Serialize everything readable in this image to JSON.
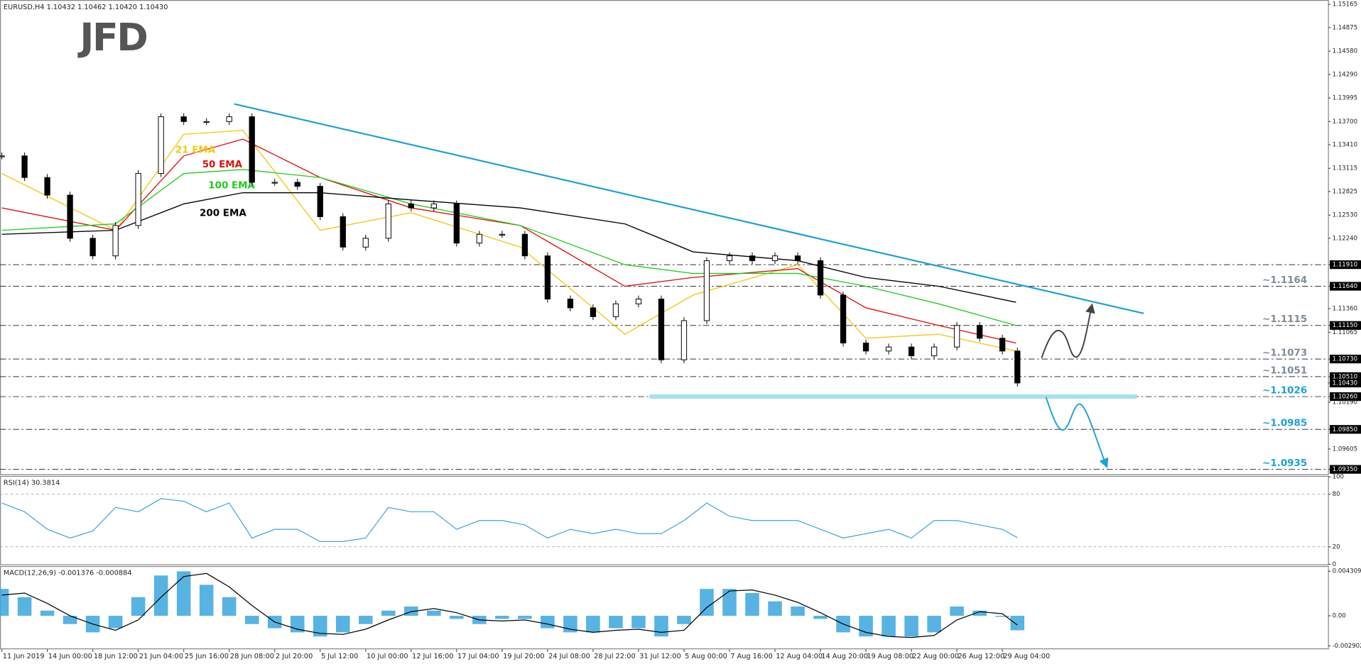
{
  "logo": "JFD",
  "chart_data": [
    {
      "type": "candlestick",
      "title": "EURUSD,H4  1.10432 1.10462 1.10420 1.10430",
      "x": [
        0,
        0.5,
        1,
        1.5,
        2,
        2.5,
        3,
        3.5,
        4,
        4.5,
        5,
        5.5,
        6,
        6.5,
        7,
        7.5,
        8,
        8.5,
        9,
        9.5,
        10,
        10.5,
        11,
        11.5,
        12,
        12.5,
        13,
        13.5,
        14,
        14.5,
        15,
        15.5,
        16,
        16.5,
        17,
        17.5,
        18,
        18.5,
        19,
        19.5,
        20,
        20.5,
        21,
        21.5,
        22,
        22.33
      ],
      "values": [
        1.1327,
        1.13,
        1.1278,
        1.1224,
        1.1202,
        1.124,
        1.1305,
        1.1376,
        1.137,
        1.137,
        1.1376,
        1.1294,
        1.1294,
        1.1289,
        1.1251,
        1.1213,
        1.1224,
        1.1267,
        1.1262,
        1.1267,
        1.1218,
        1.1229,
        1.1229,
        1.1202,
        1.1148,
        1.1137,
        1.1126,
        1.1142,
        1.1148,
        1.1072,
        1.1121,
        1.1196,
        1.1202,
        1.1196,
        1.1202,
        1.1196,
        1.1153,
        1.1093,
        1.1083,
        1.1088,
        1.1077,
        1.1088,
        1.1115,
        1.1099,
        1.1083,
        1.1043
      ],
      "color_up": "#ffffff",
      "color_down": "#000000",
      "series": [
        {
          "name": "21 EMA",
          "color": "#f2c811",
          "x": [
            0,
            2.5,
            4,
            5.3,
            7,
            9,
            11.4,
            13.7,
            15.2,
            17.5,
            19,
            20.6,
            22.3
          ],
          "values": [
            1.1305,
            1.1234,
            1.1354,
            1.1359,
            1.1234,
            1.1256,
            1.1213,
            1.1104,
            1.1153,
            1.1191,
            1.1099,
            1.1104,
            1.1083
          ]
        },
        {
          "name": "50 EMA",
          "color": "#e01010",
          "x": [
            0,
            2.5,
            4,
            5.3,
            7,
            9,
            11.4,
            13.7,
            15.2,
            17.5,
            19,
            20.6,
            22.3
          ],
          "values": [
            1.1262,
            1.1234,
            1.1327,
            1.1348,
            1.13,
            1.1262,
            1.124,
            1.1164,
            1.1175,
            1.1186,
            1.1137,
            1.1115,
            1.1093
          ]
        },
        {
          "name": "100 EMA",
          "color": "#1fcc1f",
          "x": [
            0,
            2.5,
            4,
            5.3,
            7,
            9,
            11.4,
            13.7,
            15.2,
            17.5,
            19,
            20.6,
            22.3
          ],
          "values": [
            1.1234,
            1.1242,
            1.1305,
            1.131,
            1.13,
            1.1267,
            1.124,
            1.1191,
            1.118,
            1.118,
            1.1164,
            1.1142,
            1.1115
          ]
        },
        {
          "name": "200 EMA",
          "color": "#000000",
          "x": [
            0,
            2.5,
            4,
            5.3,
            7,
            9,
            11.4,
            13.7,
            15.2,
            17.5,
            19,
            20.6,
            22.3
          ],
          "values": [
            1.1229,
            1.1234,
            1.1267,
            1.1281,
            1.1281,
            1.1272,
            1.1262,
            1.1242,
            1.1207,
            1.1196,
            1.1175,
            1.1164,
            1.1144
          ]
        }
      ],
      "trendline": {
        "x": [
          5.11,
          25.11
        ],
        "values": [
          1.1392,
          1.113
        ],
        "color": "#1e9fd8"
      },
      "support_zone": {
        "x": [
          14.24,
          24.96
        ],
        "value": 1.1026,
        "color": "#a6e0f2"
      },
      "levels": [
        {
          "value": 1.1191
        },
        {
          "value": 1.1164,
          "label": "~1.1164",
          "color": "#7f8c97"
        },
        {
          "value": 1.1115,
          "label": "~1.1115",
          "color": "#7f8c97"
        },
        {
          "value": 1.1073,
          "label": "~1.1073",
          "color": "#7f8c97"
        },
        {
          "value": 1.1051,
          "label": "~1.1051",
          "color": "#7f8c97"
        },
        {
          "value": 1.1026,
          "label": "~1.1026",
          "color": "#1ba1d9"
        },
        {
          "value": 1.0985,
          "label": "~1.0985",
          "color": "#1ba1d9"
        },
        {
          "value": 1.0935,
          "label": "~1.0935",
          "color": "#1ba1d9"
        }
      ],
      "xlim": [
        -0.04,
        29.16
      ],
      "ylim": [
        1.0929,
        1.1522
      ],
      "yticks": [
        1.15165,
        1.14875,
        {
          "value": 1.1458,
          "label": "1.14580"
        },
        {
          "value": 1.1429,
          "label": "1.14290"
        },
        1.13995,
        {
          "value": 1.137,
          "label": "1.13700"
        },
        {
          "value": 1.1341,
          "label": "1.13410"
        },
        1.13115,
        1.12825,
        {
          "value": 1.1253,
          "label": "1.12530"
        },
        {
          "value": 1.1224,
          "label": "1.12240"
        },
        {
          "value": 1.1191,
          "label": "1.11910",
          "highlight": true
        },
        {
          "value": 1.1164,
          "label": "1.11640",
          "highlight": true
        },
        {
          "value": 1.1136,
          "label": "1.11360"
        },
        {
          "value": 1.1115,
          "label": "1.11150",
          "highlight": true
        },
        1.11065,
        {
          "value": 1.1073,
          "label": "1.10730",
          "highlight": true
        },
        {
          "value": 1.1051,
          "label": "1.10510",
          "highlight": true
        },
        {
          "value": 1.1043,
          "label": "1.10430",
          "highlight": true
        },
        {
          "value": 1.1026,
          "label": "1.10260",
          "highlight": true
        },
        {
          "value": 1.1019,
          "label": "1.10190"
        },
        {
          "value": 1.0985,
          "label": "1.09850",
          "highlight": true
        },
        1.09605,
        {
          "value": 1.0935,
          "label": "1.09350",
          "highlight": true
        }
      ]
    },
    {
      "type": "line",
      "title": "RSI(14) 30.3814",
      "x": [
        0,
        0.5,
        1,
        1.5,
        2,
        2.5,
        3,
        3.5,
        4,
        4.5,
        5,
        5.5,
        6,
        6.5,
        7,
        7.5,
        8,
        8.5,
        9,
        9.5,
        10,
        10.5,
        11,
        11.5,
        12,
        12.5,
        13,
        13.5,
        14,
        14.5,
        15,
        15.5,
        16,
        16.5,
        17,
        17.5,
        18,
        18.5,
        19,
        19.5,
        20,
        20.5,
        21,
        21.5,
        22,
        22.33
      ],
      "values": [
        70,
        60,
        40,
        30,
        38,
        65,
        60,
        75,
        72,
        60,
        70,
        30,
        40,
        40,
        26,
        26,
        30,
        65,
        60,
        60,
        40,
        50,
        50,
        45,
        30,
        40,
        35,
        40,
        35,
        35,
        50,
        70,
        55,
        50,
        50,
        50,
        40,
        30,
        35,
        40,
        30,
        50,
        50,
        45,
        40,
        30.4
      ],
      "color": "#3aa6dd",
      "xlim": [
        -0.04,
        29.16
      ],
      "ylim": [
        0,
        100
      ],
      "yticks": [
        100,
        80,
        20,
        0
      ],
      "levels": [
        80,
        20
      ]
    },
    {
      "type": "macd",
      "title": "MACD(12,26,9) -0.001376 -0.000884",
      "x": [
        0,
        0.5,
        1,
        1.5,
        2,
        2.5,
        3,
        3.5,
        4,
        4.5,
        5,
        5.5,
        6,
        6.5,
        7,
        7.5,
        8,
        8.5,
        9,
        9.5,
        10,
        10.5,
        11,
        11.5,
        12,
        12.5,
        13,
        13.5,
        14,
        14.5,
        15,
        15.5,
        16,
        16.5,
        17,
        17.5,
        18,
        18.5,
        19,
        19.5,
        20,
        20.5,
        21,
        21.5,
        22,
        22.33
      ],
      "series": [
        {
          "color": "#3aa6dd",
          "values": [
            0.0026,
            0.0018,
            0.0005,
            -0.0008,
            -0.0016,
            -0.0012,
            0.0018,
            0.0039,
            0.0043,
            0.003,
            0.0018,
            -0.0008,
            -0.0012,
            -0.0016,
            -0.002,
            -0.0016,
            -0.0008,
            0.0005,
            0.0009,
            0.0005,
            -0.0003,
            -0.0008,
            -0.0003,
            -0.0003,
            -0.0012,
            -0.0016,
            -0.0016,
            -0.0012,
            -0.0012,
            -0.002,
            -0.0008,
            0.0026,
            0.0026,
            0.0022,
            0.0014,
            0.0009,
            -0.0003,
            -0.0016,
            -0.002,
            -0.002,
            -0.002,
            -0.0016,
            0.0009,
            0.0005,
            -0.0001,
            -0.0014
          ]
        },
        {
          "color": "#000000",
          "values": [
            0.002,
            0.0022,
            0.0012,
            0,
            -0.0008,
            -0.0014,
            -0.0004,
            0.0018,
            0.0038,
            0.0041,
            0.0028,
            0.001,
            -0.0006,
            -0.0013,
            -0.0017,
            -0.0018,
            -0.0013,
            -0.0004,
            0.0004,
            0.0007,
            0.0003,
            -0.0004,
            -0.0005,
            -0.0004,
            -0.0008,
            -0.0013,
            -0.0016,
            -0.0014,
            -0.0013,
            -0.0016,
            -0.0014,
            0.0008,
            0.0024,
            0.0025,
            0.002,
            0.0013,
            0.0003,
            -0.0008,
            -0.0016,
            -0.002,
            -0.0021,
            -0.0019,
            -0.0004,
            0.0004,
            0.0002,
            -0.0009
          ]
        }
      ],
      "xlim": [
        -0.04,
        29.16
      ],
      "ylim": [
        -0.002902,
        0.004309
      ],
      "yticks": [
        0.004309,
        {
          "value": 0,
          "label": "0.00"
        },
        -0.002902
      ],
      "xticks": [
        {
          "value": 0,
          "label": "11 Jun 2019"
        },
        {
          "value": 1,
          "label": "14 Jun 00:00"
        },
        {
          "value": 2,
          "label": "18 Jun 12:00"
        },
        {
          "value": 3,
          "label": "21 Jun 04:00"
        },
        {
          "value": 4,
          "label": "25 Jun 16:00"
        },
        {
          "value": 5,
          "label": "28 Jun 08:00"
        },
        {
          "value": 6,
          "label": "2 Jul 20:00"
        },
        {
          "value": 7,
          "label": "5 Jul 12:00"
        },
        {
          "value": 8,
          "label": "10 Jul 00:00"
        },
        {
          "value": 9,
          "label": "12 Jul 16:00"
        },
        {
          "value": 10,
          "label": "17 Jul 04:00"
        },
        {
          "value": 11,
          "label": "19 Jul 20:00"
        },
        {
          "value": 12,
          "label": "24 Jul 08:00"
        },
        {
          "value": 13,
          "label": "28 Jul 22:00"
        },
        {
          "value": 14,
          "label": "31 Jul 12:00"
        },
        {
          "value": 15,
          "label": "5 Aug 00:00"
        },
        {
          "value": 16,
          "label": "7 Aug 16:00"
        },
        {
          "value": 17,
          "label": "12 Aug 04:00"
        },
        {
          "value": 18,
          "label": "14 Aug 20:00"
        },
        {
          "value": 19,
          "label": "19 Aug 08:00"
        },
        {
          "value": 20,
          "label": "22 Aug 00:00"
        },
        {
          "value": 21,
          "label": "26 Aug 12:00"
        },
        {
          "value": 22,
          "label": "29 Aug 04:00"
        }
      ]
    }
  ]
}
